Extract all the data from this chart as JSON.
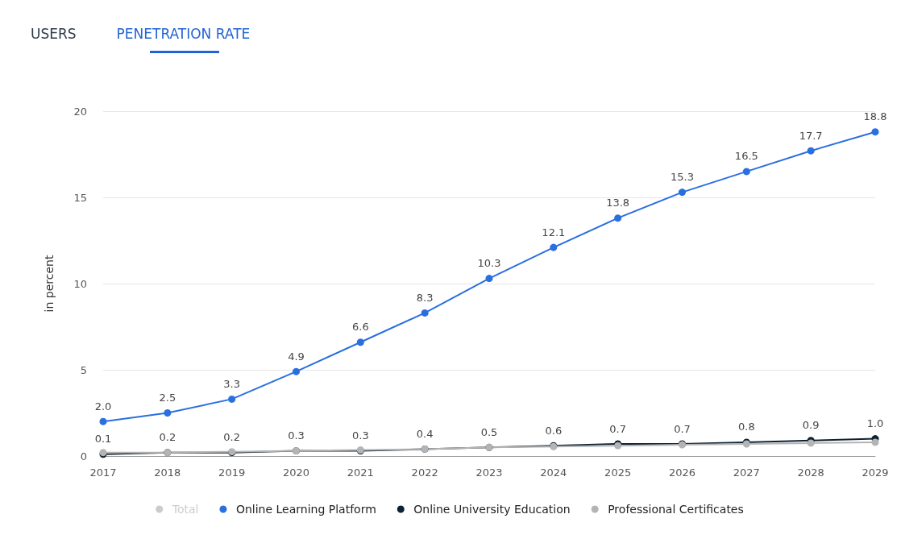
{
  "chart_data": {
    "type": "line",
    "annotations": [
      "USERS",
      "PENETRATION RATE"
    ],
    "ylabel": "in percent",
    "categories": [
      "2017",
      "2018",
      "2019",
      "2020",
      "2021",
      "2022",
      "2023",
      "2024",
      "2025",
      "2026",
      "2027",
      "2028",
      "2029"
    ],
    "series": [
      {
        "name": "Total",
        "color": "#cccccc",
        "values": [
          null,
          null,
          null,
          null,
          null,
          null,
          null,
          null,
          null,
          null,
          null,
          null,
          null
        ]
      },
      {
        "name": "Online Learning Platform",
        "color": "#2a6fe0",
        "values": [
          2.0,
          2.5,
          3.3,
          4.9,
          6.6,
          8.3,
          10.3,
          12.1,
          13.8,
          15.3,
          16.5,
          17.7,
          18.8
        ],
        "value_labels": [
          "2.0",
          "2.5",
          "3.3",
          "4.9",
          "6.6",
          "8.3",
          "10.3",
          "12.1",
          "13.8",
          "15.3",
          "16.5",
          "17.7",
          "18.8"
        ]
      },
      {
        "name": "Online University Education",
        "color": "#0e2233",
        "values": [
          0.1,
          0.2,
          0.2,
          0.3,
          0.3,
          0.4,
          0.5,
          0.6,
          0.7,
          0.7,
          0.8,
          0.9,
          1.0
        ],
        "value_labels": [
          "0.1",
          "0.2",
          "0.2",
          "0.3",
          "0.3",
          "0.4",
          "0.5",
          "0.6",
          "0.7",
          "0.7",
          "0.8",
          "0.9",
          "1.0"
        ]
      },
      {
        "name": "Professional Certificates",
        "color": "#b4b4b4",
        "values": [
          0.2,
          0.2,
          0.25,
          0.3,
          0.35,
          0.4,
          0.5,
          0.55,
          0.6,
          0.65,
          0.7,
          0.75,
          0.8
        ]
      }
    ],
    "ylim": [
      0,
      20
    ],
    "yticks": [
      0,
      5,
      10,
      15,
      20
    ],
    "grid": "y",
    "legend": "bottom",
    "marker": "circle",
    "line_style": "solid"
  }
}
